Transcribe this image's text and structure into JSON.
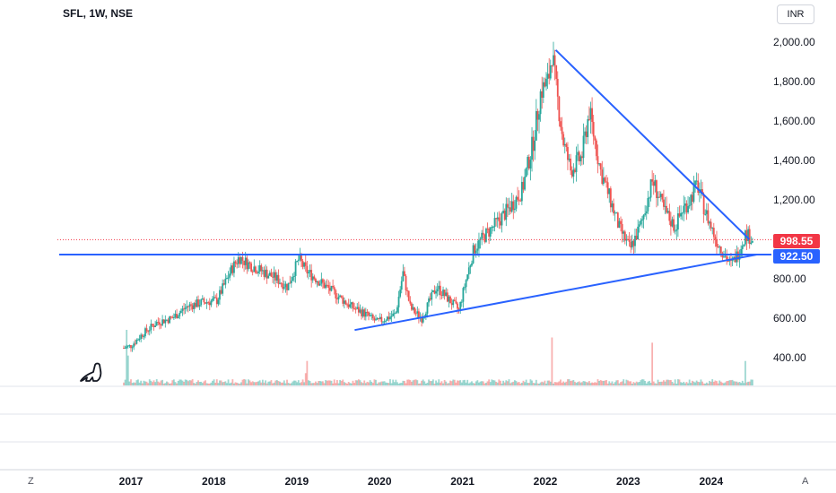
{
  "header": {
    "title": "SFL, 1W, NSE",
    "currency": "INR"
  },
  "y_axis_labels": [
    "2,000.00",
    "1,800.00",
    "1,600.00",
    "1,400.00",
    "1,200.00",
    "1,000.00",
    "800.00",
    "600.00",
    "400.00"
  ],
  "x_axis_labels": [
    "2017",
    "2018",
    "2019",
    "2020",
    "2021",
    "2022",
    "2023",
    "2024"
  ],
  "price_tags": {
    "last": "998.55",
    "support": "922.50"
  },
  "corner_buttons": {
    "left": "Z",
    "right": "A"
  },
  "colors": {
    "up": "#26a69a",
    "down": "#ef5350",
    "trendline": "#2962ff",
    "last_tag": "#f23645",
    "support_tag": "#2962ff"
  },
  "logo_icon": "tradingview-dino-icon",
  "chart_data": {
    "type": "candlestick",
    "title": "SFL, 1W, NSE",
    "xlabel": "",
    "ylabel": "",
    "ylim": [
      330,
      2080
    ],
    "xlim": [
      2016.35,
      2024.95
    ],
    "grid": false,
    "anchor_points": [
      [
        2016.35,
        450
      ],
      [
        2016.45,
        460
      ],
      [
        2016.6,
        520
      ],
      [
        2016.8,
        580
      ],
      [
        2017.0,
        600
      ],
      [
        2017.2,
        660
      ],
      [
        2017.4,
        680
      ],
      [
        2017.6,
        690
      ],
      [
        2017.8,
        850
      ],
      [
        2017.9,
        910
      ],
      [
        2018.0,
        880
      ],
      [
        2018.2,
        840
      ],
      [
        2018.4,
        800
      ],
      [
        2018.55,
        760
      ],
      [
        2018.7,
        900
      ],
      [
        2018.8,
        840
      ],
      [
        2019.0,
        780
      ],
      [
        2019.2,
        720
      ],
      [
        2019.4,
        660
      ],
      [
        2019.6,
        620
      ],
      [
        2019.75,
        580
      ],
      [
        2020.0,
        620
      ],
      [
        2020.1,
        830
      ],
      [
        2020.2,
        650
      ],
      [
        2020.35,
        600
      ],
      [
        2020.55,
        760
      ],
      [
        2020.7,
        700
      ],
      [
        2020.85,
        640
      ],
      [
        2020.95,
        800
      ],
      [
        2021.05,
        950
      ],
      [
        2021.2,
        1020
      ],
      [
        2021.4,
        1100
      ],
      [
        2021.55,
        1170
      ],
      [
        2021.7,
        1250
      ],
      [
        2021.85,
        1500
      ],
      [
        2021.95,
        1750
      ],
      [
        2022.05,
        1800
      ],
      [
        2022.1,
        1950
      ],
      [
        2022.15,
        1780
      ],
      [
        2022.25,
        1500
      ],
      [
        2022.35,
        1350
      ],
      [
        2022.5,
        1420
      ],
      [
        2022.6,
        1650
      ],
      [
        2022.75,
        1350
      ],
      [
        2022.9,
        1180
      ],
      [
        2023.0,
        1060
      ],
      [
        2023.15,
        950
      ],
      [
        2023.3,
        1080
      ],
      [
        2023.45,
        1300
      ],
      [
        2023.6,
        1150
      ],
      [
        2023.75,
        1060
      ],
      [
        2023.85,
        1150
      ],
      [
        2023.95,
        1200
      ],
      [
        2024.05,
        1280
      ],
      [
        2024.15,
        1150
      ],
      [
        2024.3,
        1000
      ],
      [
        2024.45,
        900
      ],
      [
        2024.5,
        870
      ],
      [
        2024.6,
        930
      ],
      [
        2024.7,
        1030
      ],
      [
        2024.8,
        998.55
      ]
    ],
    "volume_spikes": {
      "2016.4": 3.5,
      "2018.8": 1.5,
      "2022.1": 3.0,
      "2023.45": 3.2,
      "2024.7": 1.8
    },
    "annotations": {
      "last_price": 998.55,
      "horizontal_support": 922.5,
      "descending_trendline": {
        "from": [
          2022.15,
          1960
        ],
        "to": [
          2024.75,
          1000
        ]
      },
      "ascending_trendline": {
        "from": [
          2019.45,
          540
        ],
        "to": [
          2024.85,
          922.5
        ]
      }
    }
  }
}
